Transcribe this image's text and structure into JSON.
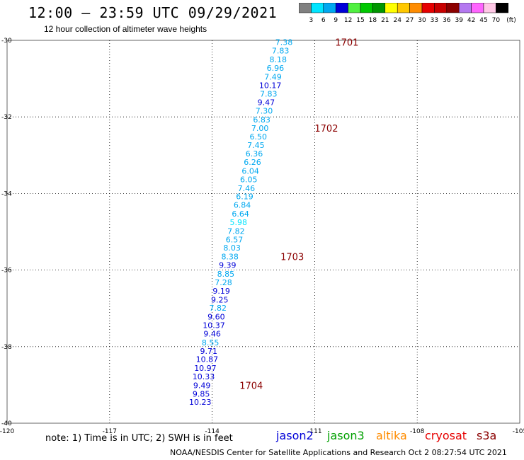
{
  "header": {
    "title": "12:00 – 23:59 UTC 09/29/2021",
    "subtitle": "12 hour collection of altimeter wave heights"
  },
  "colorbar": {
    "unit_label": "(ft)",
    "stops": [
      {
        "label": "3",
        "color": "#808080"
      },
      {
        "label": "6",
        "color": "#00e5ff"
      },
      {
        "label": "9",
        "color": "#00a8f0"
      },
      {
        "label": "12",
        "color": "#0000d8"
      },
      {
        "label": "15",
        "color": "#50f040"
      },
      {
        "label": "18",
        "color": "#00c800"
      },
      {
        "label": "21",
        "color": "#009600"
      },
      {
        "label": "24",
        "color": "#ffff00"
      },
      {
        "label": "27",
        "color": "#ffc800"
      },
      {
        "label": "30",
        "color": "#ff8c00"
      },
      {
        "label": "33",
        "color": "#e60000"
      },
      {
        "label": "36",
        "color": "#c80000"
      },
      {
        "label": "39",
        "color": "#8b0000"
      },
      {
        "label": "42",
        "color": "#b478f0"
      },
      {
        "label": "45",
        "color": "#ff64ff"
      },
      {
        "label": "70",
        "color": "#ffc8e6"
      },
      {
        "label": "",
        "color": "#000000"
      }
    ]
  },
  "map": {
    "lon_ticks": [
      "-120",
      "-117",
      "-114",
      "-111",
      "-108",
      "-105"
    ],
    "lat_ticks": [
      "-30",
      "-32",
      "-34",
      "-36",
      "-38",
      "-40"
    ],
    "lon_range": [
      -120,
      -105
    ],
    "lat_range": [
      -30,
      -40
    ]
  },
  "swh_colors": {
    "light": "#00a8f0",
    "cyan": "#00e5ff",
    "dark": "#0000d8"
  },
  "swh_points": [
    {
      "v": "7.38",
      "lon": -111.9,
      "lat": -30.05,
      "c": "light"
    },
    {
      "v": "7.83",
      "lon": -112.0,
      "lat": -30.27,
      "c": "light"
    },
    {
      "v": "8.18",
      "lon": -112.07,
      "lat": -30.5,
      "c": "light"
    },
    {
      "v": "6.96",
      "lon": -112.15,
      "lat": -30.72,
      "c": "light"
    },
    {
      "v": "7.49",
      "lon": -112.22,
      "lat": -30.95,
      "c": "light"
    },
    {
      "v": "10.17",
      "lon": -112.3,
      "lat": -31.17,
      "c": "dark"
    },
    {
      "v": "7.83",
      "lon": -112.35,
      "lat": -31.4,
      "c": "light"
    },
    {
      "v": "9.47",
      "lon": -112.42,
      "lat": -31.62,
      "c": "dark"
    },
    {
      "v": "7.30",
      "lon": -112.48,
      "lat": -31.84,
      "c": "light"
    },
    {
      "v": "6.83",
      "lon": -112.55,
      "lat": -32.07,
      "c": "light"
    },
    {
      "v": "7.00",
      "lon": -112.6,
      "lat": -32.29,
      "c": "light"
    },
    {
      "v": "6.50",
      "lon": -112.65,
      "lat": -32.51,
      "c": "light"
    },
    {
      "v": "7.45",
      "lon": -112.72,
      "lat": -32.74,
      "c": "light"
    },
    {
      "v": "6.36",
      "lon": -112.77,
      "lat": -32.96,
      "c": "light"
    },
    {
      "v": "6.26",
      "lon": -112.82,
      "lat": -33.18,
      "c": "light"
    },
    {
      "v": "6.04",
      "lon": -112.88,
      "lat": -33.41,
      "c": "light"
    },
    {
      "v": "6.05",
      "lon": -112.93,
      "lat": -33.63,
      "c": "light"
    },
    {
      "v": "7.46",
      "lon": -113.0,
      "lat": -33.86,
      "c": "light"
    },
    {
      "v": "6.19",
      "lon": -113.05,
      "lat": -34.08,
      "c": "light"
    },
    {
      "v": "6.84",
      "lon": -113.12,
      "lat": -34.3,
      "c": "light"
    },
    {
      "v": "6.64",
      "lon": -113.17,
      "lat": -34.53,
      "c": "light"
    },
    {
      "v": "5.98",
      "lon": -113.23,
      "lat": -34.75,
      "c": "cyan"
    },
    {
      "v": "7.82",
      "lon": -113.3,
      "lat": -34.98,
      "c": "light"
    },
    {
      "v": "6.57",
      "lon": -113.35,
      "lat": -35.2,
      "c": "light"
    },
    {
      "v": "8.03",
      "lon": -113.42,
      "lat": -35.42,
      "c": "light"
    },
    {
      "v": "8.38",
      "lon": -113.48,
      "lat": -35.65,
      "c": "light"
    },
    {
      "v": "9.39",
      "lon": -113.55,
      "lat": -35.87,
      "c": "dark"
    },
    {
      "v": "8.85",
      "lon": -113.6,
      "lat": -36.1,
      "c": "light"
    },
    {
      "v": "7.28",
      "lon": -113.67,
      "lat": -36.32,
      "c": "light"
    },
    {
      "v": "9.19",
      "lon": -113.73,
      "lat": -36.54,
      "c": "dark"
    },
    {
      "v": "9.25",
      "lon": -113.78,
      "lat": -36.77,
      "c": "dark"
    },
    {
      "v": "7.82",
      "lon": -113.83,
      "lat": -36.99,
      "c": "light"
    },
    {
      "v": "9.60",
      "lon": -113.88,
      "lat": -37.22,
      "c": "dark"
    },
    {
      "v": "10.37",
      "lon": -113.95,
      "lat": -37.44,
      "c": "dark"
    },
    {
      "v": "9.46",
      "lon": -114.0,
      "lat": -37.66,
      "c": "dark"
    },
    {
      "v": "8.55",
      "lon": -114.05,
      "lat": -37.89,
      "c": "light"
    },
    {
      "v": "9.71",
      "lon": -114.1,
      "lat": -38.11,
      "c": "dark"
    },
    {
      "v": "10.87",
      "lon": -114.15,
      "lat": -38.33,
      "c": "dark"
    },
    {
      "v": "10.97",
      "lon": -114.2,
      "lat": -38.56,
      "c": "dark"
    },
    {
      "v": "10.33",
      "lon": -114.25,
      "lat": -38.78,
      "c": "dark"
    },
    {
      "v": "9.49",
      "lon": -114.3,
      "lat": -39.01,
      "c": "dark"
    },
    {
      "v": "9.85",
      "lon": -114.32,
      "lat": -39.23,
      "c": "dark"
    },
    {
      "v": "10.23",
      "lon": -114.35,
      "lat": -39.45,
      "c": "dark"
    }
  ],
  "time_labels": [
    {
      "label": "1701",
      "lon": -110.4,
      "lat": -30.05
    },
    {
      "label": "1702",
      "lon": -111.0,
      "lat": -32.29
    },
    {
      "label": "1703",
      "lon": -112.0,
      "lat": -35.65
    },
    {
      "label": "1704",
      "lon": -113.2,
      "lat": -39.01
    }
  ],
  "time_label_color": "#8b0000",
  "note": "note: 1) Time is in UTC; 2) SWH is in feet",
  "satellites": [
    {
      "name": "jason2",
      "color": "#0000d8"
    },
    {
      "name": "jason3",
      "color": "#00a000"
    },
    {
      "name": "altika",
      "color": "#ff8c00"
    },
    {
      "name": "cryosat",
      "color": "#e60000"
    },
    {
      "name": "s3a",
      "color": "#8b0000"
    }
  ],
  "footer": "NOAA/NESDIS Center for Satellite Applications and Research    Oct  2 08:27:54 UTC 2021"
}
